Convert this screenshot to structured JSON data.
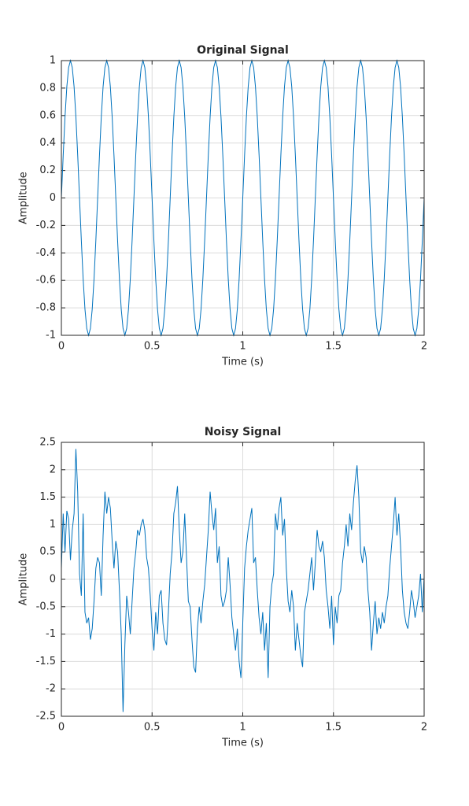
{
  "chart_data": [
    {
      "type": "line",
      "title": "Original Signal",
      "x_label": "Time (s)",
      "y_label": "Amplitude",
      "color": "#0072bd",
      "grid": true,
      "xlim": [
        0,
        2
      ],
      "xticks": [
        0,
        0.5,
        1,
        1.5,
        2
      ],
      "ylim": [
        -1,
        1
      ],
      "yticks": [
        -1,
        -0.8,
        -0.6,
        -0.4,
        -0.2,
        0,
        0.2,
        0.4,
        0.6,
        0.8,
        1
      ],
      "x": [
        0,
        0.01,
        0.02,
        0.03,
        0.04,
        0.05,
        0.06,
        0.07,
        0.08,
        0.09,
        0.1,
        0.11,
        0.12,
        0.13,
        0.14,
        0.15,
        0.16,
        0.17,
        0.18,
        0.19,
        0.2,
        0.21,
        0.22,
        0.23,
        0.24,
        0.25,
        0.26,
        0.27,
        0.28,
        0.29,
        0.3,
        0.31,
        0.32,
        0.33,
        0.34,
        0.35,
        0.36,
        0.37,
        0.38,
        0.39,
        0.4,
        0.41,
        0.42,
        0.43,
        0.44,
        0.45,
        0.46,
        0.47,
        0.48,
        0.49,
        0.5,
        0.51,
        0.52,
        0.53,
        0.54,
        0.55,
        0.56,
        0.57,
        0.58,
        0.59,
        0.6,
        0.61,
        0.62,
        0.63,
        0.64,
        0.65,
        0.66,
        0.67,
        0.68,
        0.69,
        0.7,
        0.71,
        0.72,
        0.73,
        0.74,
        0.75,
        0.76,
        0.77,
        0.78,
        0.79,
        0.8,
        0.81,
        0.82,
        0.83,
        0.84,
        0.85,
        0.86,
        0.87,
        0.88,
        0.89,
        0.9,
        0.91,
        0.92,
        0.93,
        0.94,
        0.95,
        0.96,
        0.97,
        0.98,
        0.99,
        1,
        1.01,
        1.02,
        1.03,
        1.04,
        1.05,
        1.06,
        1.07,
        1.08,
        1.09,
        1.1,
        1.11,
        1.12,
        1.13,
        1.14,
        1.15,
        1.16,
        1.17,
        1.18,
        1.19,
        1.2,
        1.21,
        1.22,
        1.23,
        1.24,
        1.25,
        1.26,
        1.27,
        1.28,
        1.29,
        1.3,
        1.31,
        1.32,
        1.33,
        1.34,
        1.35,
        1.36,
        1.37,
        1.38,
        1.39,
        1.4,
        1.41,
        1.42,
        1.43,
        1.44,
        1.45,
        1.46,
        1.47,
        1.48,
        1.49,
        1.5,
        1.51,
        1.52,
        1.53,
        1.54,
        1.55,
        1.56,
        1.57,
        1.58,
        1.59,
        1.6,
        1.61,
        1.62,
        1.63,
        1.64,
        1.65,
        1.66,
        1.67,
        1.68,
        1.69,
        1.7,
        1.71,
        1.72,
        1.73,
        1.74,
        1.75,
        1.76,
        1.77,
        1.78,
        1.79,
        1.8,
        1.81,
        1.82,
        1.83,
        1.84,
        1.85,
        1.86,
        1.87,
        1.88,
        1.89,
        1.9,
        1.91,
        1.92,
        1.93,
        1.94,
        1.95,
        1.96,
        1.97,
        1.98,
        1.99,
        2
      ],
      "values": [
        0,
        0.31,
        0.59,
        0.81,
        0.95,
        1,
        0.95,
        0.81,
        0.59,
        0.31,
        0,
        -0.31,
        -0.59,
        -0.81,
        -0.95,
        -1,
        -0.95,
        -0.81,
        -0.59,
        -0.31,
        0,
        0.31,
        0.59,
        0.81,
        0.95,
        1,
        0.95,
        0.81,
        0.59,
        0.31,
        0,
        -0.31,
        -0.59,
        -0.81,
        -0.95,
        -1,
        -0.95,
        -0.81,
        -0.59,
        -0.31,
        0,
        0.31,
        0.59,
        0.81,
        0.95,
        1,
        0.95,
        0.81,
        0.59,
        0.31,
        0,
        -0.31,
        -0.59,
        -0.81,
        -0.95,
        -1,
        -0.95,
        -0.81,
        -0.59,
        -0.31,
        0,
        0.31,
        0.59,
        0.81,
        0.95,
        1,
        0.95,
        0.81,
        0.59,
        0.31,
        0,
        -0.31,
        -0.59,
        -0.81,
        -0.95,
        -1,
        -0.95,
        -0.81,
        -0.59,
        -0.31,
        0,
        0.31,
        0.59,
        0.81,
        0.95,
        1,
        0.95,
        0.81,
        0.59,
        0.31,
        0,
        -0.31,
        -0.59,
        -0.81,
        -0.95,
        -1,
        -0.95,
        -0.81,
        -0.59,
        -0.31,
        0,
        0.31,
        0.59,
        0.81,
        0.95,
        1,
        0.95,
        0.81,
        0.59,
        0.31,
        0,
        -0.31,
        -0.59,
        -0.81,
        -0.95,
        -1,
        -0.95,
        -0.81,
        -0.59,
        -0.31,
        0,
        0.31,
        0.59,
        0.81,
        0.95,
        1,
        0.95,
        0.81,
        0.59,
        0.31,
        0,
        -0.31,
        -0.59,
        -0.81,
        -0.95,
        -1,
        -0.95,
        -0.81,
        -0.59,
        -0.31,
        0,
        0.31,
        0.59,
        0.81,
        0.95,
        1,
        0.95,
        0.81,
        0.59,
        0.31,
        0,
        -0.31,
        -0.59,
        -0.81,
        -0.95,
        -1,
        -0.95,
        -0.81,
        -0.59,
        -0.31,
        0,
        0.31,
        0.59,
        0.81,
        0.95,
        1,
        0.95,
        0.81,
        0.59,
        0.31,
        0,
        -0.31,
        -0.59,
        -0.81,
        -0.95,
        -1,
        -0.95,
        -0.81,
        -0.59,
        -0.31,
        0,
        0.31,
        0.59,
        0.81,
        0.95,
        1,
        0.95,
        0.81,
        0.59,
        0.31,
        0,
        -0.31,
        -0.59,
        -0.81,
        -0.95,
        -1,
        -0.95,
        -0.81,
        -0.59,
        -0.31,
        0
      ]
    },
    {
      "type": "line",
      "title": "Noisy Signal",
      "x_label": "Time (s)",
      "y_label": "Amplitude",
      "color": "#0072bd",
      "grid": true,
      "xlim": [
        0,
        2
      ],
      "xticks": [
        0,
        0.5,
        1,
        1.5,
        2
      ],
      "ylim": [
        -2.5,
        2.5
      ],
      "yticks": [
        -2.5,
        -2,
        -1.5,
        -1,
        -0.5,
        0,
        0.5,
        1,
        1.5,
        2,
        2.5
      ],
      "x": [
        0,
        0.01,
        0.02,
        0.03,
        0.04,
        0.05,
        0.06,
        0.07,
        0.08,
        0.09,
        0.1,
        0.11,
        0.12,
        0.13,
        0.14,
        0.15,
        0.16,
        0.17,
        0.18,
        0.19,
        0.2,
        0.21,
        0.22,
        0.23,
        0.24,
        0.25,
        0.26,
        0.27,
        0.28,
        0.29,
        0.3,
        0.31,
        0.32,
        0.33,
        0.34,
        0.35,
        0.36,
        0.37,
        0.38,
        0.39,
        0.4,
        0.41,
        0.42,
        0.43,
        0.44,
        0.45,
        0.46,
        0.47,
        0.48,
        0.49,
        0.5,
        0.51,
        0.52,
        0.53,
        0.54,
        0.55,
        0.56,
        0.57,
        0.58,
        0.59,
        0.6,
        0.61,
        0.62,
        0.63,
        0.64,
        0.65,
        0.66,
        0.67,
        0.68,
        0.69,
        0.7,
        0.71,
        0.72,
        0.73,
        0.74,
        0.75,
        0.76,
        0.77,
        0.78,
        0.79,
        0.8,
        0.81,
        0.82,
        0.83,
        0.84,
        0.85,
        0.86,
        0.87,
        0.88,
        0.89,
        0.9,
        0.91,
        0.92,
        0.93,
        0.94,
        0.95,
        0.96,
        0.97,
        0.98,
        0.99,
        1,
        1.01,
        1.02,
        1.03,
        1.04,
        1.05,
        1.06,
        1.07,
        1.08,
        1.09,
        1.1,
        1.11,
        1.12,
        1.13,
        1.14,
        1.15,
        1.16,
        1.17,
        1.18,
        1.19,
        1.2,
        1.21,
        1.22,
        1.23,
        1.24,
        1.25,
        1.26,
        1.27,
        1.28,
        1.29,
        1.3,
        1.31,
        1.32,
        1.33,
        1.34,
        1.35,
        1.36,
        1.37,
        1.38,
        1.39,
        1.4,
        1.41,
        1.42,
        1.43,
        1.44,
        1.45,
        1.46,
        1.47,
        1.48,
        1.49,
        1.5,
        1.51,
        1.52,
        1.53,
        1.54,
        1.55,
        1.56,
        1.57,
        1.58,
        1.59,
        1.6,
        1.61,
        1.62,
        1.63,
        1.64,
        1.65,
        1.66,
        1.67,
        1.68,
        1.69,
        1.7,
        1.71,
        1.72,
        1.73,
        1.74,
        1.75,
        1.76,
        1.77,
        1.78,
        1.79,
        1.8,
        1.81,
        1.82,
        1.83,
        1.84,
        1.85,
        1.86,
        1.87,
        1.88,
        1.89,
        1.9,
        1.91,
        1.92,
        1.93,
        1.94,
        1.95,
        1.96,
        1.97,
        1.98,
        1.99,
        2
      ],
      "values": [
        0.2,
        1.2,
        0.5,
        1.25,
        1.1,
        0.35,
        0.9,
        1.2,
        2.38,
        1.6,
        0.1,
        -0.3,
        1.2,
        -0.6,
        -0.8,
        -0.7,
        -1.1,
        -0.9,
        -0.4,
        0.2,
        0.4,
        0.3,
        -0.3,
        0.8,
        1.6,
        1.2,
        1.5,
        1.3,
        0.7,
        0.2,
        0.7,
        0.5,
        -0.2,
        -1.0,
        -2.42,
        -1.2,
        -0.3,
        -0.6,
        -1.0,
        -0.4,
        0.2,
        0.5,
        0.9,
        0.8,
        1.0,
        1.1,
        0.9,
        0.4,
        0.2,
        -0.3,
        -0.9,
        -1.3,
        -0.6,
        -1.0,
        -0.3,
        -0.2,
        -0.8,
        -1.1,
        -1.2,
        -0.6,
        0.1,
        0.5,
        1.2,
        1.4,
        1.7,
        0.9,
        0.3,
        0.5,
        1.2,
        0.4,
        -0.4,
        -0.5,
        -1.1,
        -1.6,
        -1.7,
        -0.9,
        -0.5,
        -0.8,
        -0.4,
        -0.1,
        0.4,
        0.9,
        1.6,
        1.2,
        0.9,
        1.3,
        0.3,
        0.6,
        -0.3,
        -0.5,
        -0.4,
        -0.2,
        0.4,
        -0.1,
        -0.7,
        -1.0,
        -1.3,
        -0.9,
        -1.5,
        -1.8,
        -0.8,
        0.2,
        0.6,
        0.9,
        1.1,
        1.3,
        0.3,
        0.4,
        -0.2,
        -0.7,
        -1.0,
        -0.6,
        -1.3,
        -0.8,
        -1.8,
        -0.5,
        -0.1,
        0.1,
        1.2,
        0.9,
        1.3,
        1.5,
        0.8,
        1.1,
        0.2,
        -0.4,
        -0.6,
        -0.2,
        -0.5,
        -1.3,
        -0.8,
        -1.1,
        -1.4,
        -1.6,
        -0.6,
        -0.4,
        -0.2,
        0.1,
        0.4,
        -0.2,
        0.3,
        0.9,
        0.6,
        0.5,
        0.7,
        0.4,
        -0.2,
        -0.5,
        -0.9,
        -0.3,
        -1.2,
        -0.5,
        -0.8,
        -0.3,
        -0.2,
        0.3,
        0.6,
        1.0,
        0.6,
        1.2,
        0.9,
        1.4,
        1.8,
        2.08,
        1.5,
        0.5,
        0.3,
        0.6,
        0.4,
        -0.2,
        -0.6,
        -1.3,
        -0.8,
        -0.4,
        -1.0,
        -0.7,
        -0.9,
        -0.6,
        -0.8,
        -0.5,
        -0.3,
        0.2,
        0.6,
        1.0,
        1.5,
        0.8,
        1.2,
        0.6,
        -0.2,
        -0.6,
        -0.8,
        -0.9,
        -0.6,
        -0.2,
        -0.4,
        -0.7,
        -0.5,
        -0.3,
        0.1,
        -0.6,
        0.05
      ]
    }
  ]
}
